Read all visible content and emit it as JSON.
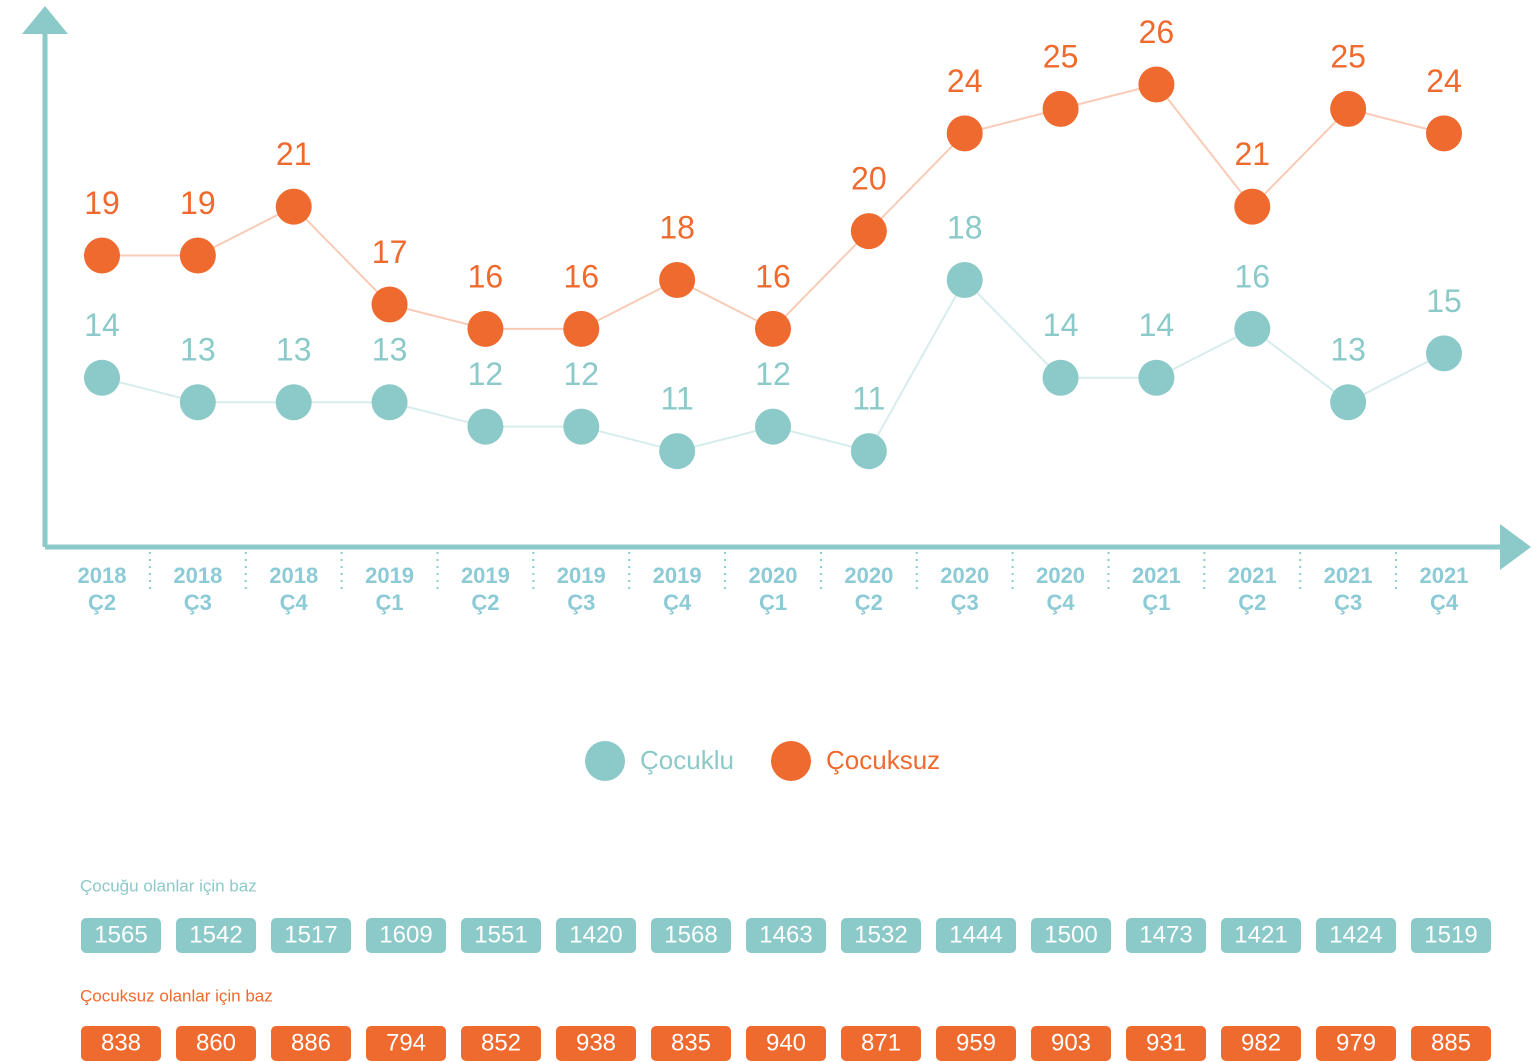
{
  "chart_data": {
    "type": "line",
    "categories": [
      "2018 Ç2",
      "2018 Ç3",
      "2018 Ç4",
      "2019 Ç1",
      "2019 Ç2",
      "2019 Ç3",
      "2019 Ç4",
      "2020 Ç1",
      "2020 Ç2",
      "2020 Ç3",
      "2020 Ç4",
      "2021 Ç1",
      "2021 Ç2",
      "2021 Ç3",
      "2021 Ç4"
    ],
    "series": [
      {
        "name": "Çocuklu",
        "color": "#8cc9c9",
        "values": [
          14,
          13,
          13,
          13,
          12,
          12,
          11,
          12,
          11,
          18,
          14,
          14,
          16,
          13,
          15
        ]
      },
      {
        "name": "Çocuksuz",
        "color": "#ef6a2e",
        "values": [
          19,
          19,
          21,
          17,
          16,
          16,
          18,
          16,
          20,
          24,
          25,
          26,
          21,
          25,
          24
        ]
      }
    ],
    "ylim": [
      9,
      27
    ]
  },
  "bases": [
    {
      "title": "Çocuğu olanlar için baz",
      "color": "#8cc9c9",
      "values": [
        1565,
        1542,
        1517,
        1609,
        1551,
        1420,
        1568,
        1463,
        1532,
        1444,
        1500,
        1473,
        1421,
        1424,
        1519
      ]
    },
    {
      "title": "Çocuksuz olanlar için baz",
      "color": "#ef6a2e",
      "values": [
        838,
        860,
        886,
        794,
        852,
        938,
        835,
        940,
        871,
        959,
        903,
        931,
        982,
        979,
        885
      ]
    }
  ]
}
